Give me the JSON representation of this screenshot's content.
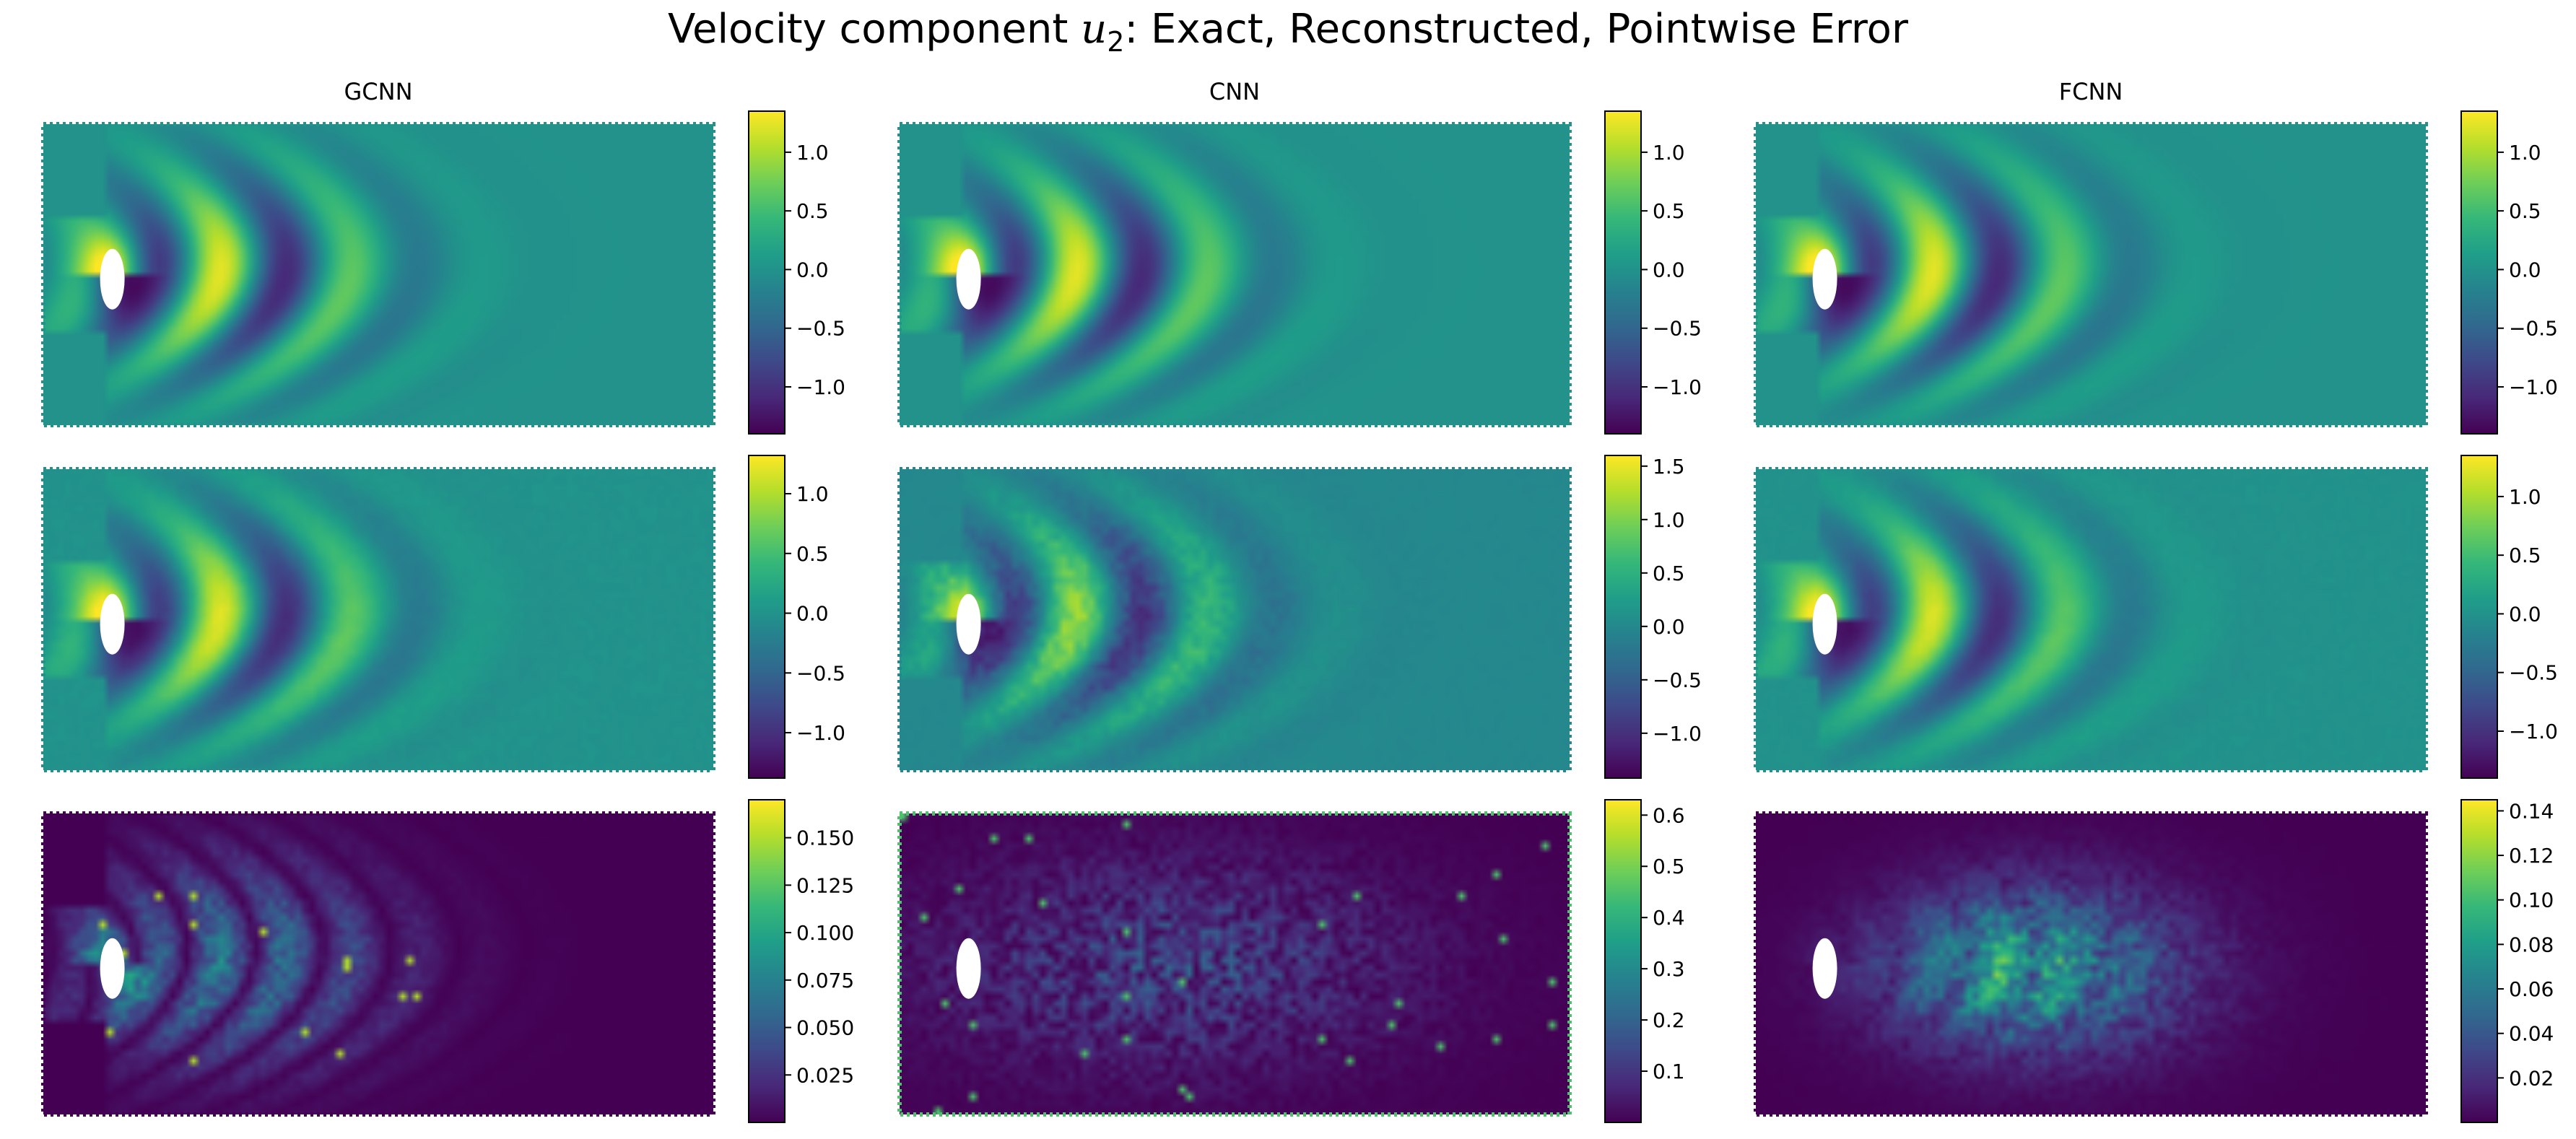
{
  "figure": {
    "title_prefix": "Velocity component ",
    "title_var": "u",
    "title_sub": "2",
    "title_suffix": ": Exact, Reconstructed, Pointwise Error"
  },
  "colors": {
    "viridis": [
      "#440154",
      "#482878",
      "#3e4989",
      "#31688e",
      "#26828e",
      "#1f9e89",
      "#35b779",
      "#6ece58",
      "#b5de2b",
      "#fde725"
    ],
    "obstacle": "#ffffff"
  },
  "chart_data": [
    {
      "type": "heatmap",
      "column_title": "GCNN",
      "panels": [
        {
          "kind": "exact",
          "clim": [
            -1.4,
            1.35
          ],
          "cbar_ticks": [
            1.0,
            0.5,
            0.0,
            -0.5,
            -1.0
          ],
          "cbar_labels": [
            "1.0",
            "0.5",
            "0.0",
            "−0.5",
            "−1.0"
          ]
        },
        {
          "kind": "reconstructed",
          "clim": [
            -1.38,
            1.32
          ],
          "cbar_ticks": [
            1.0,
            0.5,
            0.0,
            -0.5,
            -1.0
          ],
          "cbar_labels": [
            "1.0",
            "0.5",
            "0.0",
            "−0.5",
            "−1.0"
          ]
        },
        {
          "kind": "error",
          "clim": [
            0.0,
            0.17
          ],
          "cbar_ticks": [
            0.15,
            0.125,
            0.1,
            0.075,
            0.05,
            0.025
          ],
          "cbar_labels": [
            "0.150",
            "0.125",
            "0.100",
            "0.075",
            "0.050",
            "0.025"
          ]
        }
      ]
    },
    {
      "type": "heatmap",
      "column_title": "CNN",
      "panels": [
        {
          "kind": "exact",
          "clim": [
            -1.4,
            1.35
          ],
          "cbar_ticks": [
            1.0,
            0.5,
            0.0,
            -0.5,
            -1.0
          ],
          "cbar_labels": [
            "1.0",
            "0.5",
            "0.0",
            "−0.5",
            "−1.0"
          ]
        },
        {
          "kind": "reconstructed",
          "clim": [
            -1.42,
            1.6
          ],
          "cbar_ticks": [
            1.5,
            1.0,
            0.5,
            0.0,
            -0.5,
            -1.0
          ],
          "cbar_labels": [
            "1.5",
            "1.0",
            "0.5",
            "0.0",
            "−0.5",
            "−1.0"
          ]
        },
        {
          "kind": "error",
          "clim": [
            0.0,
            0.63
          ],
          "cbar_ticks": [
            0.6,
            0.5,
            0.4,
            0.3,
            0.2,
            0.1
          ],
          "cbar_labels": [
            "0.6",
            "0.5",
            "0.4",
            "0.3",
            "0.2",
            "0.1"
          ]
        }
      ]
    },
    {
      "type": "heatmap",
      "column_title": "FCNN",
      "panels": [
        {
          "kind": "exact",
          "clim": [
            -1.4,
            1.35
          ],
          "cbar_ticks": [
            1.0,
            0.5,
            0.0,
            -0.5,
            -1.0
          ],
          "cbar_labels": [
            "1.0",
            "0.5",
            "0.0",
            "−0.5",
            "−1.0"
          ]
        },
        {
          "kind": "reconstructed",
          "clim": [
            -1.4,
            1.35
          ],
          "cbar_ticks": [
            1.0,
            0.5,
            0.0,
            -0.5,
            -1.0
          ],
          "cbar_labels": [
            "1.0",
            "0.5",
            "0.0",
            "−0.5",
            "−1.0"
          ]
        },
        {
          "kind": "error",
          "clim": [
            0.0,
            0.145
          ],
          "cbar_ticks": [
            0.14,
            0.12,
            0.1,
            0.08,
            0.06,
            0.04,
            0.02
          ],
          "cbar_labels": [
            "0.14",
            "0.12",
            "0.10",
            "0.08",
            "0.06",
            "0.04",
            "0.02"
          ]
        }
      ]
    }
  ]
}
